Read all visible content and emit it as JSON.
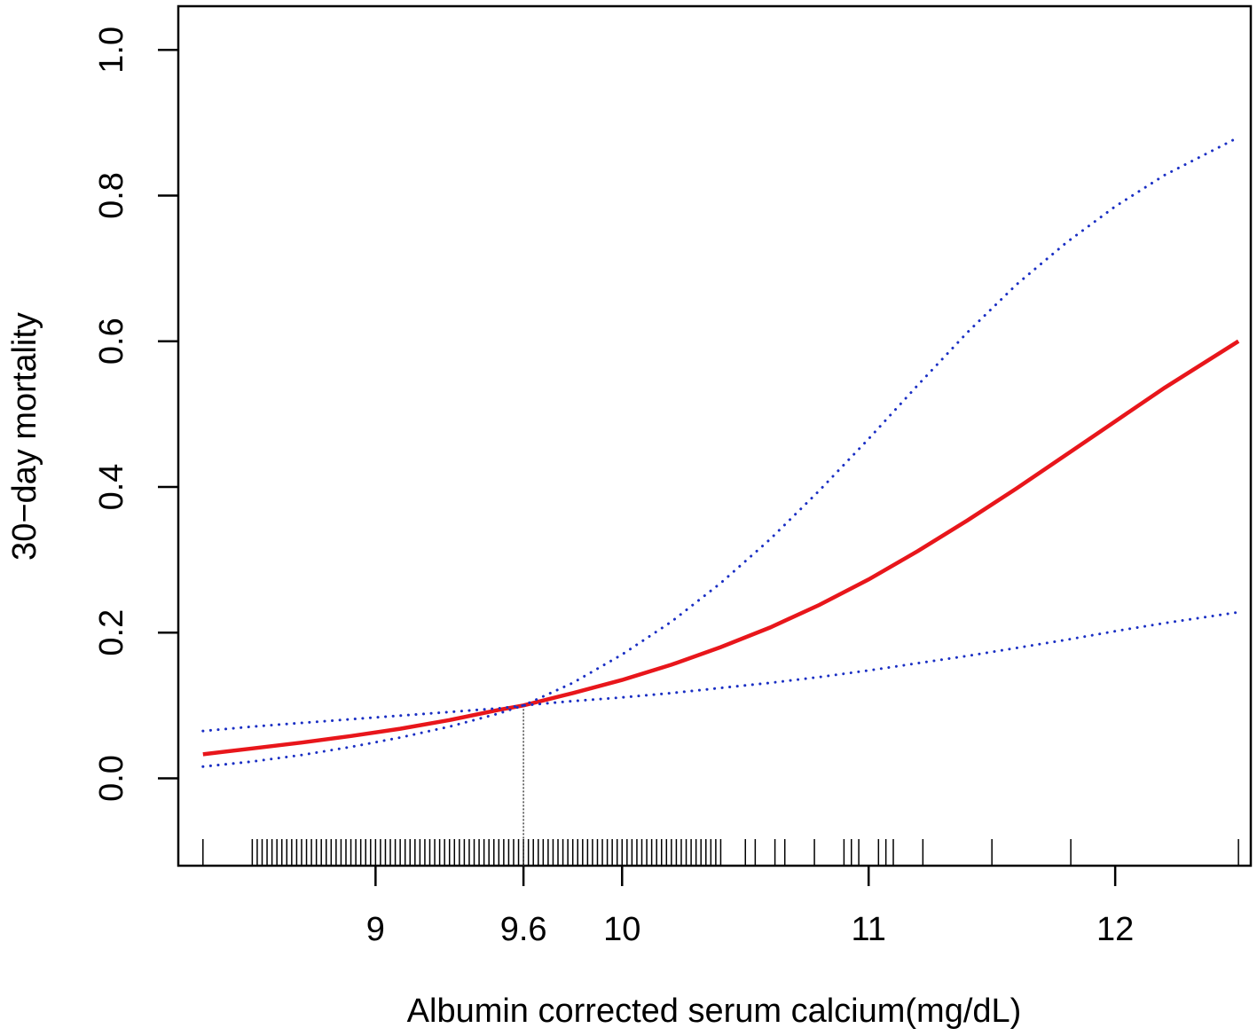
{
  "chart_data": {
    "type": "line",
    "title": "",
    "xlabel": "Albumin corrected serum calcium(mg/dL)",
    "ylabel": "30−day mortality",
    "xlim": [
      8.2,
      12.55
    ],
    "ylim": [
      -0.12,
      1.06
    ],
    "x_ticks": [
      9,
      9.6,
      10,
      11,
      12
    ],
    "x_tick_labels": [
      "9",
      "9.6",
      "10",
      "11",
      "12"
    ],
    "y_ticks": [
      0.0,
      0.2,
      0.4,
      0.6,
      0.8,
      1.0
    ],
    "y_tick_labels": [
      "0.0",
      "0.2",
      "0.4",
      "0.6",
      "0.8",
      "1.0"
    ],
    "reference_x": 9.6,
    "legend": "none",
    "grid": false,
    "colors": {
      "estimate": "#e8161b",
      "ci": "#1a2fc4",
      "axis": "#000000"
    },
    "series": [
      {
        "role": "estimate",
        "style": "solid",
        "x": [
          8.3,
          8.5,
          8.7,
          8.9,
          9.1,
          9.3,
          9.5,
          9.6,
          9.8,
          10.0,
          10.2,
          10.4,
          10.6,
          10.8,
          11.0,
          11.2,
          11.4,
          11.6,
          11.8,
          12.0,
          12.2,
          12.5
        ],
        "y": [
          0.033,
          0.041,
          0.049,
          0.058,
          0.068,
          0.08,
          0.094,
          0.1,
          0.117,
          0.135,
          0.156,
          0.18,
          0.207,
          0.238,
          0.273,
          0.312,
          0.354,
          0.398,
          0.444,
          0.49,
          0.536,
          0.6
        ]
      },
      {
        "role": "ci_upper",
        "style": "dotted",
        "x": [
          8.3,
          8.5,
          8.7,
          8.9,
          9.1,
          9.3,
          9.5,
          9.6,
          9.8,
          10.0,
          10.2,
          10.4,
          10.6,
          10.8,
          11.0,
          11.2,
          11.4,
          11.6,
          11.8,
          12.0,
          12.2,
          12.5
        ],
        "y": [
          0.065,
          0.071,
          0.076,
          0.081,
          0.086,
          0.091,
          0.096,
          0.1,
          0.131,
          0.17,
          0.215,
          0.268,
          0.328,
          0.395,
          0.466,
          0.54,
          0.612,
          0.678,
          0.735,
          0.785,
          0.828,
          0.88
        ]
      },
      {
        "role": "ci_lower",
        "style": "dotted",
        "x": [
          8.3,
          8.5,
          8.7,
          8.9,
          9.1,
          9.3,
          9.5,
          9.6,
          9.8,
          10.0,
          10.2,
          10.4,
          10.6,
          10.8,
          11.0,
          11.2,
          11.4,
          11.6,
          11.8,
          12.0,
          12.2,
          12.5
        ],
        "y": [
          0.016,
          0.023,
          0.032,
          0.043,
          0.056,
          0.071,
          0.089,
          0.1,
          0.106,
          0.111,
          0.117,
          0.124,
          0.131,
          0.139,
          0.148,
          0.158,
          0.168,
          0.179,
          0.19,
          0.202,
          0.213,
          0.228
        ]
      }
    ],
    "rug_x": [
      8.3,
      8.5,
      8.52,
      8.54,
      8.56,
      8.58,
      8.6,
      8.62,
      8.64,
      8.66,
      8.68,
      8.7,
      8.72,
      8.74,
      8.76,
      8.78,
      8.8,
      8.82,
      8.84,
      8.86,
      8.88,
      8.9,
      8.92,
      8.94,
      8.96,
      8.98,
      9.0,
      9.02,
      9.04,
      9.06,
      9.08,
      9.1,
      9.12,
      9.14,
      9.16,
      9.18,
      9.2,
      9.22,
      9.24,
      9.26,
      9.28,
      9.3,
      9.32,
      9.34,
      9.36,
      9.38,
      9.4,
      9.42,
      9.44,
      9.46,
      9.48,
      9.5,
      9.52,
      9.54,
      9.56,
      9.58,
      9.6,
      9.62,
      9.64,
      9.66,
      9.68,
      9.7,
      9.72,
      9.74,
      9.76,
      9.78,
      9.8,
      9.82,
      9.84,
      9.86,
      9.88,
      9.9,
      9.92,
      9.94,
      9.96,
      9.98,
      10.0,
      10.02,
      10.04,
      10.06,
      10.08,
      10.1,
      10.12,
      10.14,
      10.16,
      10.18,
      10.2,
      10.22,
      10.24,
      10.26,
      10.28,
      10.3,
      10.32,
      10.34,
      10.36,
      10.38,
      10.4,
      10.5,
      10.54,
      10.62,
      10.66,
      10.78,
      10.9,
      10.93,
      10.96,
      11.04,
      11.07,
      11.1,
      11.22,
      11.5,
      11.82,
      12.5
    ]
  }
}
